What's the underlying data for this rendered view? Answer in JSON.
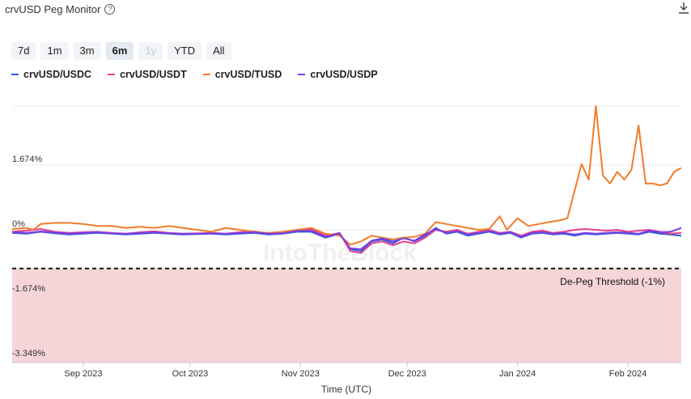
{
  "header": {
    "title": "crvUSD Peg Monitor",
    "help_icon": "question-circle-icon",
    "download_icon": "download-icon"
  },
  "ranges": [
    {
      "label": "7d",
      "state": "normal"
    },
    {
      "label": "1m",
      "state": "normal"
    },
    {
      "label": "3m",
      "state": "normal"
    },
    {
      "label": "6m",
      "state": "active"
    },
    {
      "label": "1y",
      "state": "disabled"
    },
    {
      "label": "YTD",
      "state": "normal"
    },
    {
      "label": "All",
      "state": "normal"
    }
  ],
  "chart_data": {
    "type": "line",
    "xlabel": "Time (UTC)",
    "ylabel": "",
    "x_ticks": [
      "Sep 2023",
      "Oct 2023",
      "Nov 2023",
      "Dec 2023",
      "Jan 2024",
      "Feb 2024"
    ],
    "y_ticks": [
      "1.674%",
      "0%",
      "-1.674%",
      "-3.349%"
    ],
    "x_range": [
      "2023-08-12",
      "2024-02-16"
    ],
    "ylim": [
      -3.349,
      3.2
    ],
    "threshold": {
      "label": "De-Peg Threshold (-1%)",
      "value": -1.0
    },
    "watermark": "IntoTheBlock",
    "legend_position": "top-left",
    "series": [
      {
        "name": "crvUSD/USDC",
        "color": "#2f5bd8",
        "points": [
          [
            0,
            -0.08
          ],
          [
            4,
            -0.1
          ],
          [
            8,
            -0.05
          ],
          [
            12,
            -0.09
          ],
          [
            16,
            -0.12
          ],
          [
            20,
            -0.1
          ],
          [
            24,
            -0.08
          ],
          [
            28,
            -0.1
          ],
          [
            32,
            -0.12
          ],
          [
            36,
            -0.1
          ],
          [
            40,
            -0.08
          ],
          [
            44,
            -0.1
          ],
          [
            48,
            -0.12
          ],
          [
            52,
            -0.11
          ],
          [
            56,
            -0.1
          ],
          [
            60,
            -0.12
          ],
          [
            64,
            -0.1
          ],
          [
            68,
            -0.08
          ],
          [
            72,
            -0.12
          ],
          [
            76,
            -0.1
          ],
          [
            80,
            -0.05
          ],
          [
            84,
            -0.05
          ],
          [
            88,
            -0.2
          ],
          [
            92,
            -0.1
          ],
          [
            95,
            -0.5
          ],
          [
            98,
            -0.55
          ],
          [
            101,
            -0.3
          ],
          [
            104,
            -0.25
          ],
          [
            107,
            -0.35
          ],
          [
            110,
            -0.2
          ],
          [
            113,
            -0.3
          ],
          [
            116,
            -0.15
          ],
          [
            119,
            0.05
          ],
          [
            122,
            -0.1
          ],
          [
            125,
            -0.05
          ],
          [
            128,
            -0.15
          ],
          [
            131,
            -0.1
          ],
          [
            134,
            -0.05
          ],
          [
            137,
            -0.12
          ],
          [
            140,
            -0.08
          ],
          [
            143,
            -0.2
          ],
          [
            146,
            -0.1
          ],
          [
            149,
            -0.08
          ],
          [
            152,
            -0.12
          ],
          [
            155,
            -0.1
          ],
          [
            158,
            -0.15
          ],
          [
            161,
            -0.1
          ],
          [
            164,
            -0.12
          ],
          [
            167,
            -0.1
          ],
          [
            170,
            -0.08
          ],
          [
            173,
            -0.1
          ],
          [
            176,
            -0.12
          ],
          [
            179,
            -0.05
          ],
          [
            182,
            -0.1
          ],
          [
            185,
            -0.12
          ],
          [
            188,
            -0.15
          ]
        ]
      },
      {
        "name": "crvUSD/USDT",
        "color": "#e83e8c",
        "points": [
          [
            0,
            -0.05
          ],
          [
            4,
            -0.02
          ],
          [
            8,
            0.02
          ],
          [
            12,
            -0.05
          ],
          [
            16,
            -0.08
          ],
          [
            20,
            -0.06
          ],
          [
            24,
            -0.05
          ],
          [
            28,
            -0.08
          ],
          [
            32,
            -0.1
          ],
          [
            36,
            -0.06
          ],
          [
            40,
            -0.04
          ],
          [
            44,
            -0.08
          ],
          [
            48,
            -0.1
          ],
          [
            52,
            -0.09
          ],
          [
            56,
            -0.08
          ],
          [
            60,
            -0.1
          ],
          [
            64,
            -0.06
          ],
          [
            68,
            -0.04
          ],
          [
            72,
            -0.1
          ],
          [
            76,
            -0.08
          ],
          [
            80,
            0.0
          ],
          [
            84,
            0.02
          ],
          [
            88,
            -0.15
          ],
          [
            92,
            -0.08
          ],
          [
            95,
            -0.55
          ],
          [
            98,
            -0.6
          ],
          [
            101,
            -0.35
          ],
          [
            104,
            -0.3
          ],
          [
            107,
            -0.4
          ],
          [
            110,
            -0.3
          ],
          [
            113,
            -0.35
          ],
          [
            116,
            -0.2
          ],
          [
            119,
            0.0
          ],
          [
            122,
            -0.05
          ],
          [
            125,
            0.0
          ],
          [
            128,
            -0.1
          ],
          [
            131,
            -0.05
          ],
          [
            134,
            0.0
          ],
          [
            137,
            -0.08
          ],
          [
            140,
            -0.05
          ],
          [
            143,
            -0.15
          ],
          [
            146,
            -0.05
          ],
          [
            149,
            -0.02
          ],
          [
            152,
            -0.08
          ],
          [
            155,
            -0.05
          ],
          [
            158,
            0.0
          ],
          [
            161,
            0.02
          ],
          [
            164,
            0.0
          ],
          [
            167,
            -0.02
          ],
          [
            170,
            0.0
          ],
          [
            173,
            -0.05
          ],
          [
            176,
            -0.02
          ],
          [
            179,
            0.0
          ],
          [
            182,
            -0.05
          ],
          [
            185,
            -0.1
          ],
          [
            188,
            -0.08
          ]
        ]
      },
      {
        "name": "crvUSD/TUSD",
        "color": "#f07c2a",
        "points": [
          [
            0,
            0.02
          ],
          [
            4,
            0.05
          ],
          [
            6,
            0.0
          ],
          [
            8,
            0.15
          ],
          [
            12,
            0.18
          ],
          [
            16,
            0.18
          ],
          [
            20,
            0.15
          ],
          [
            24,
            0.1
          ],
          [
            28,
            0.1
          ],
          [
            32,
            0.05
          ],
          [
            36,
            0.08
          ],
          [
            40,
            0.05
          ],
          [
            44,
            0.1
          ],
          [
            48,
            0.05
          ],
          [
            52,
            0.0
          ],
          [
            56,
            -0.05
          ],
          [
            60,
            0.05
          ],
          [
            64,
            0.0
          ],
          [
            68,
            -0.05
          ],
          [
            72,
            -0.08
          ],
          [
            76,
            -0.05
          ],
          [
            80,
            0.0
          ],
          [
            84,
            0.05
          ],
          [
            88,
            -0.1
          ],
          [
            92,
            -0.15
          ],
          [
            95,
            -0.38
          ],
          [
            98,
            -0.3
          ],
          [
            101,
            -0.15
          ],
          [
            104,
            -0.2
          ],
          [
            107,
            -0.25
          ],
          [
            110,
            -0.2
          ],
          [
            113,
            -0.18
          ],
          [
            116,
            -0.1
          ],
          [
            119,
            0.2
          ],
          [
            122,
            0.15
          ],
          [
            125,
            0.1
          ],
          [
            128,
            0.05
          ],
          [
            131,
            0.0
          ],
          [
            134,
            0.02
          ],
          [
            137,
            0.35
          ],
          [
            139,
            0.0
          ],
          [
            142,
            0.3
          ],
          [
            145,
            0.1
          ],
          [
            148,
            0.15
          ],
          [
            151,
            0.2
          ],
          [
            154,
            0.25
          ],
          [
            156,
            0.3
          ],
          [
            158,
            1.0
          ],
          [
            160,
            1.7
          ],
          [
            162,
            1.3
          ],
          [
            164,
            3.2
          ],
          [
            166,
            1.4
          ],
          [
            168,
            1.2
          ],
          [
            170,
            1.5
          ],
          [
            172,
            1.3
          ],
          [
            174,
            1.55
          ],
          [
            176,
            2.7
          ],
          [
            178,
            1.2
          ],
          [
            180,
            1.2
          ],
          [
            182,
            1.15
          ],
          [
            184,
            1.2
          ],
          [
            186,
            1.5
          ],
          [
            188,
            1.6
          ]
        ]
      },
      {
        "name": "crvUSD/USDP",
        "color": "#7b3fe4",
        "points": [
          [
            0,
            -0.06
          ],
          [
            4,
            -0.08
          ],
          [
            8,
            -0.04
          ],
          [
            12,
            -0.07
          ],
          [
            16,
            -0.1
          ],
          [
            20,
            -0.08
          ],
          [
            24,
            -0.06
          ],
          [
            28,
            -0.09
          ],
          [
            32,
            -0.1
          ],
          [
            36,
            -0.08
          ],
          [
            40,
            -0.06
          ],
          [
            44,
            -0.09
          ],
          [
            48,
            -0.1
          ],
          [
            52,
            -0.1
          ],
          [
            56,
            -0.09
          ],
          [
            60,
            -0.1
          ],
          [
            64,
            -0.08
          ],
          [
            68,
            -0.06
          ],
          [
            72,
            -0.1
          ],
          [
            76,
            -0.09
          ],
          [
            80,
            -0.03
          ],
          [
            84,
            -0.02
          ],
          [
            88,
            -0.18
          ],
          [
            92,
            -0.09
          ],
          [
            95,
            -0.48
          ],
          [
            98,
            -0.5
          ],
          [
            101,
            -0.28
          ],
          [
            104,
            -0.22
          ],
          [
            107,
            -0.3
          ],
          [
            110,
            -0.22
          ],
          [
            113,
            -0.28
          ],
          [
            116,
            -0.12
          ],
          [
            119,
            0.02
          ],
          [
            122,
            -0.08
          ],
          [
            125,
            -0.03
          ],
          [
            128,
            -0.12
          ],
          [
            131,
            -0.08
          ],
          [
            134,
            -0.03
          ],
          [
            137,
            -0.1
          ],
          [
            140,
            -0.06
          ],
          [
            143,
            -0.18
          ],
          [
            146,
            -0.08
          ],
          [
            149,
            -0.06
          ],
          [
            152,
            -0.1
          ],
          [
            155,
            -0.08
          ],
          [
            158,
            -0.12
          ],
          [
            161,
            -0.08
          ],
          [
            164,
            -0.1
          ],
          [
            167,
            -0.08
          ],
          [
            170,
            -0.06
          ],
          [
            173,
            -0.08
          ],
          [
            176,
            -0.1
          ],
          [
            179,
            -0.02
          ],
          [
            182,
            -0.06
          ],
          [
            185,
            -0.05
          ],
          [
            188,
            0.05
          ]
        ]
      }
    ]
  }
}
